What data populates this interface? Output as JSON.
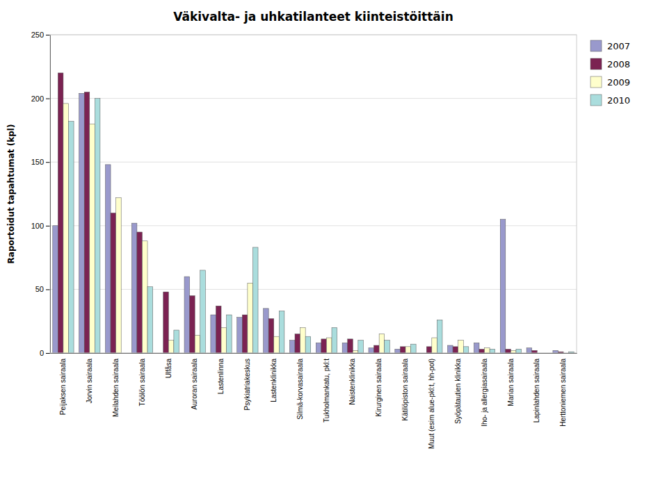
{
  "chart_data": {
    "type": "bar",
    "title": "Väkivalta- ja uhkatilanteet kiinteistöittäin",
    "ylabel": "Raportoidut tapahtumat (kpl)",
    "categories": [
      "Peijaksen sairaala",
      "Jorvin sairaala",
      "Meilahden sairaala",
      "Töölön sairaala",
      "Ulfåsa",
      "Auroran sairaala",
      "Lastenlinna",
      "Psykiatriakeskus",
      "Lastenklinikka",
      "Silmä-korvasairaala",
      "Tukholmankatu, pkl:t",
      "Naistenklinikka",
      "Kirurginen sairaala",
      "Kätilöpiston sairaala",
      "Muut (esim alue-pkl:t, hh-pot)",
      "Syöpätautien klinikka",
      "Iho- ja allergiasairaala",
      "Marian sairaala",
      "Lapinlahden sairaala",
      "Herttoniemen sairaala"
    ],
    "series": [
      {
        "name": "2007",
        "color": "#9999CC",
        "values": [
          100,
          204,
          148,
          102,
          0,
          60,
          30,
          28,
          35,
          10,
          8,
          8,
          4,
          3,
          0,
          6,
          8,
          105,
          4,
          2
        ]
      },
      {
        "name": "2008",
        "color": "#7B2252",
        "values": [
          220,
          205,
          110,
          95,
          48,
          45,
          37,
          30,
          27,
          15,
          11,
          11,
          6,
          5,
          5,
          5,
          3,
          3,
          2,
          1
        ]
      },
      {
        "name": "2009",
        "color": "#FFFFCC",
        "values": [
          196,
          180,
          122,
          88,
          10,
          14,
          20,
          55,
          13,
          20,
          12,
          2,
          15,
          5,
          12,
          10,
          4,
          2,
          0,
          0
        ]
      },
      {
        "name": "2010",
        "color": "#AADDDD",
        "values": [
          182,
          200,
          0,
          52,
          18,
          65,
          30,
          83,
          33,
          13,
          20,
          10,
          10,
          7,
          26,
          5,
          3,
          3,
          0,
          1
        ]
      }
    ],
    "ylim": [
      0,
      250
    ],
    "yticks": [
      0,
      50,
      100,
      150,
      200,
      250
    ],
    "grid": true,
    "legend": "right"
  }
}
